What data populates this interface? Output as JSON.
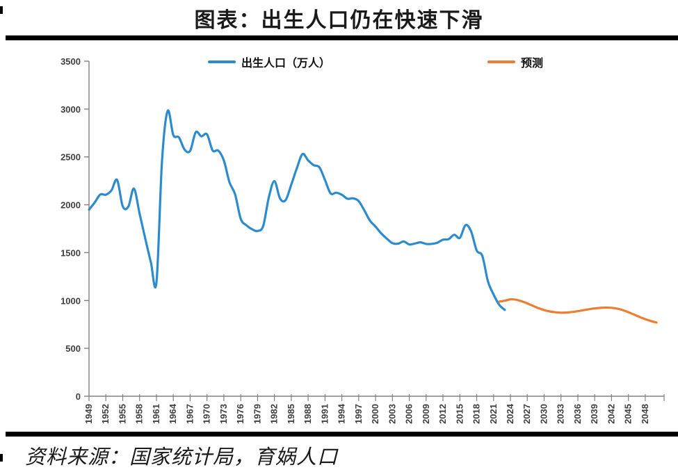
{
  "header": {
    "title": "图表：出生人口仍在快速下滑"
  },
  "footer": {
    "source": "资料来源：国家统计局，育娲人口"
  },
  "legend": {
    "actual": "出生人口（万人）",
    "forecast": "预测"
  },
  "colors": {
    "actual_line": "#2B8BCE",
    "forecast_line": "#ED7D31",
    "axis": "#808080",
    "tick_label": "#3f3f3f",
    "divider": "#000000"
  },
  "chart_data": {
    "type": "line",
    "title": "图表：出生人口仍在快速下滑",
    "xlabel": "",
    "ylabel": "出生人口（万人）",
    "ylim": [
      0,
      3500
    ],
    "xlim": [
      1949,
      2050
    ],
    "grid": false,
    "legend_position": "top",
    "x_tick_rotation": -90,
    "y_ticks": [
      0,
      500,
      1000,
      1500,
      2000,
      2500,
      3000,
      3500
    ],
    "x_ticks": [
      1949,
      1952,
      1955,
      1958,
      1961,
      1964,
      1967,
      1970,
      1973,
      1976,
      1979,
      1982,
      1985,
      1988,
      1991,
      1994,
      1997,
      2000,
      2003,
      2006,
      2009,
      2012,
      2015,
      2018,
      2021,
      2024,
      2027,
      2030,
      2033,
      2036,
      2039,
      2042,
      2045,
      2048
    ],
    "series": [
      {
        "key": "actual",
        "name": "出生人口（万人）",
        "color": "#2B8BCE",
        "x_start": 1949,
        "values": [
          1950,
          2023,
          2107,
          2105,
          2151,
          2260,
          1984,
          1982,
          2169,
          1909,
          1650,
          1402,
          1190,
          2460,
          2980,
          2729,
          2704,
          2577,
          2563,
          2757,
          2715,
          2736,
          2567,
          2566,
          2463,
          2235,
          2109,
          1853,
          1786,
          1745,
          1727,
          1779,
          2078,
          2247,
          2065,
          2050,
          2211,
          2384,
          2529,
          2464,
          2414,
          2391,
          2258,
          2119,
          2126,
          2104,
          2063,
          2067,
          2038,
          1942,
          1834,
          1771,
          1702,
          1647,
          1599,
          1593,
          1617,
          1585,
          1595,
          1608,
          1591,
          1592,
          1604,
          1635,
          1640,
          1687,
          1655,
          1786,
          1723,
          1523,
          1465,
          1200,
          1062,
          956,
          902
        ]
      },
      {
        "key": "forecast",
        "name": "预测",
        "color": "#ED7D31",
        "x_start": 2022,
        "values": [
          988,
          998,
          1012,
          1008,
          992,
          970,
          945,
          920,
          900,
          886,
          877,
          873,
          874,
          880,
          889,
          899,
          909,
          917,
          923,
          926,
          924,
          916,
          900,
          878,
          853,
          828,
          805,
          786,
          770
        ]
      }
    ]
  }
}
